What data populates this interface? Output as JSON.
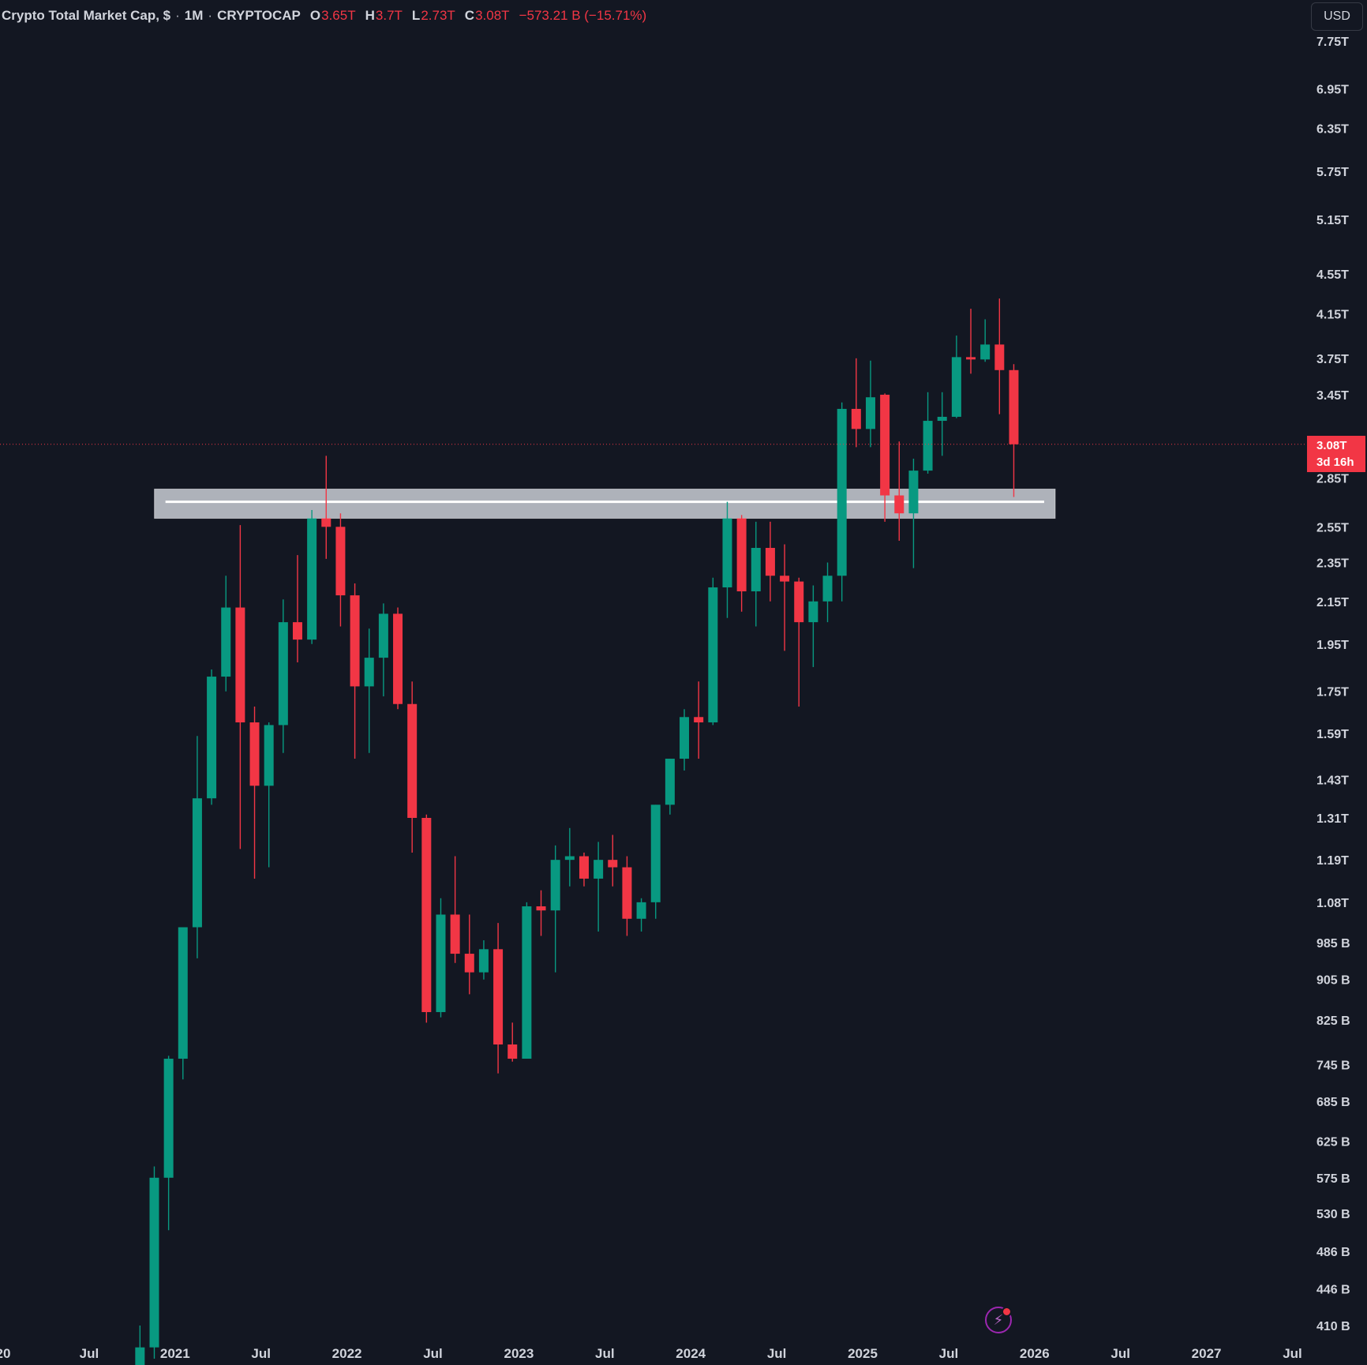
{
  "header": {
    "title": "Crypto Total Market Cap, $",
    "interval": "1M",
    "exchange": "CRYPTOCAP",
    "open_label": "O",
    "open_value": "3.65T",
    "high_label": "H",
    "high_value": "3.7T",
    "low_label": "L",
    "low_value": "2.73T",
    "close_label": "C",
    "close_value": "3.08T",
    "change": "−573.21 B (−15.71%)"
  },
  "currency_button": "USD",
  "last_price": {
    "value": "3.08T",
    "countdown": "3d 16h"
  },
  "bolt_icon": "lightning-bolt-icon",
  "colors": {
    "background": "#131722",
    "up": "#089981",
    "down": "#f23645",
    "zone": "#d1d4dc"
  },
  "chart_data": {
    "type": "candlestick",
    "title": "Crypto Total Market Cap",
    "interval": "1M",
    "y_scale": "log",
    "ylim": [
      400000000000,
      7900000000000
    ],
    "y_unit": "USD",
    "y_ticks": [
      {
        "label": "7.75T",
        "value": 7750000000000.0
      },
      {
        "label": "6.95T",
        "value": 6950000000000.0
      },
      {
        "label": "6.35T",
        "value": 6350000000000.0
      },
      {
        "label": "5.75T",
        "value": 5750000000000.0
      },
      {
        "label": "5.15T",
        "value": 5150000000000.0
      },
      {
        "label": "4.55T",
        "value": 4550000000000.0
      },
      {
        "label": "4.15T",
        "value": 4150000000000.0
      },
      {
        "label": "3.75T",
        "value": 3750000000000.0
      },
      {
        "label": "3.45T",
        "value": 3450000000000.0
      },
      {
        "label": "2.85T",
        "value": 2850000000000.0
      },
      {
        "label": "2.55T",
        "value": 2550000000000.0
      },
      {
        "label": "2.35T",
        "value": 2350000000000.0
      },
      {
        "label": "2.15T",
        "value": 2150000000000.0
      },
      {
        "label": "1.95T",
        "value": 1950000000000.0
      },
      {
        "label": "1.75T",
        "value": 1750000000000.0
      },
      {
        "label": "1.59T",
        "value": 1590000000000.0
      },
      {
        "label": "1.43T",
        "value": 1430000000000.0
      },
      {
        "label": "1.31T",
        "value": 1310000000000.0
      },
      {
        "label": "1.19T",
        "value": 1190000000000.0
      },
      {
        "label": "1.08T",
        "value": 1080000000000.0
      },
      {
        "label": "985 B",
        "value": 985000000000.0
      },
      {
        "label": "905 B",
        "value": 905000000000.0
      },
      {
        "label": "825 B",
        "value": 825000000000.0
      },
      {
        "label": "745 B",
        "value": 745000000000.0
      },
      {
        "label": "685 B",
        "value": 685000000000.0
      },
      {
        "label": "625 B",
        "value": 625000000000.0
      },
      {
        "label": "575 B",
        "value": 575000000000.0
      },
      {
        "label": "530 B",
        "value": 530000000000.0
      },
      {
        "label": "486 B",
        "value": 486000000000.0
      },
      {
        "label": "446 B",
        "value": 446000000000.0
      },
      {
        "label": "410 B",
        "value": 410000000000.0
      }
    ],
    "x_ticks": [
      {
        "label": "20",
        "date": "2020-01"
      },
      {
        "label": "Jul",
        "date": "2020-07"
      },
      {
        "label": "2021",
        "date": "2021-01"
      },
      {
        "label": "Jul",
        "date": "2021-07"
      },
      {
        "label": "2022",
        "date": "2022-01"
      },
      {
        "label": "Jul",
        "date": "2022-07"
      },
      {
        "label": "2023",
        "date": "2023-01"
      },
      {
        "label": "Jul",
        "date": "2023-07"
      },
      {
        "label": "2024",
        "date": "2024-01"
      },
      {
        "label": "Jul",
        "date": "2024-07"
      },
      {
        "label": "2025",
        "date": "2025-01"
      },
      {
        "label": "Jul",
        "date": "2025-07"
      },
      {
        "label": "2026",
        "date": "2026-01"
      },
      {
        "label": "Jul",
        "date": "2026-07"
      },
      {
        "label": "2027",
        "date": "2027-01"
      },
      {
        "label": "Jul",
        "date": "2027-07"
      }
    ],
    "candles": [
      {
        "date": "2020-10",
        "open": 350000000000.0,
        "high": 410000000000.0,
        "low": 340000000000.0,
        "close": 390000000000.0
      },
      {
        "date": "2020-11",
        "open": 390000000000.0,
        "high": 590000000000.0,
        "low": 380000000000.0,
        "close": 575000000000.0
      },
      {
        "date": "2020-12",
        "open": 575000000000.0,
        "high": 760000000000.0,
        "low": 510000000000.0,
        "close": 755000000000.0
      },
      {
        "date": "2021-01",
        "open": 755000000000.0,
        "high": 1000000000000.0,
        "low": 720000000000.0,
        "close": 1020000000000.0
      },
      {
        "date": "2021-02",
        "open": 1020000000000.0,
        "high": 1580000000000.0,
        "low": 950000000000.0,
        "close": 1370000000000.0
      },
      {
        "date": "2021-03",
        "open": 1370000000000.0,
        "high": 1840000000000.0,
        "low": 1350000000000.0,
        "close": 1810000000000.0
      },
      {
        "date": "2021-04",
        "open": 1810000000000.0,
        "high": 2280000000000.0,
        "low": 1750000000000.0,
        "close": 2120000000000.0
      },
      {
        "date": "2021-05",
        "open": 2120000000000.0,
        "high": 2560000000000.0,
        "low": 1220000000000.0,
        "close": 1630000000000.0
      },
      {
        "date": "2021-06",
        "open": 1630000000000.0,
        "high": 1690000000000.0,
        "low": 1140000000000.0,
        "close": 1410000000000.0
      },
      {
        "date": "2021-07",
        "open": 1410000000000.0,
        "high": 1630000000000.0,
        "low": 1170000000000.0,
        "close": 1620000000000.0
      },
      {
        "date": "2021-08",
        "open": 1620000000000.0,
        "high": 2160000000000.0,
        "low": 1520000000000.0,
        "close": 2050000000000.0
      },
      {
        "date": "2021-09",
        "open": 2050000000000.0,
        "high": 2390000000000.0,
        "low": 1870000000000.0,
        "close": 1970000000000.0
      },
      {
        "date": "2021-10",
        "open": 1970000000000.0,
        "high": 2650000000000.0,
        "low": 1950000000000.0,
        "close": 2600000000000.0
      },
      {
        "date": "2021-11",
        "open": 2600000000000.0,
        "high": 3000000000000.0,
        "low": 2370000000000.0,
        "close": 2550000000000.0
      },
      {
        "date": "2021-12",
        "open": 2550000000000.0,
        "high": 2630000000000.0,
        "low": 2030000000000.0,
        "close": 2180000000000.0
      },
      {
        "date": "2022-01",
        "open": 2180000000000.0,
        "high": 2240000000000.0,
        "low": 1500000000000.0,
        "close": 1770000000000.0
      },
      {
        "date": "2022-02",
        "open": 1770000000000.0,
        "high": 2020000000000.0,
        "low": 1520000000000.0,
        "close": 1890000000000.0
      },
      {
        "date": "2022-03",
        "open": 1890000000000.0,
        "high": 2140000000000.0,
        "low": 1730000000000.0,
        "close": 2090000000000.0
      },
      {
        "date": "2022-04",
        "open": 2090000000000.0,
        "high": 2120000000000.0,
        "low": 1680000000000.0,
        "close": 1700000000000.0
      },
      {
        "date": "2022-05",
        "open": 1700000000000.0,
        "high": 1790000000000.0,
        "low": 1210000000000.0,
        "close": 1310000000000.0
      },
      {
        "date": "2022-06",
        "open": 1310000000000.0,
        "high": 1320000000000.0,
        "low": 820000000000.0,
        "close": 840000000000.0
      },
      {
        "date": "2022-07",
        "open": 840000000000.0,
        "high": 1090000000000.0,
        "low": 830000000000.0,
        "close": 1050000000000.0
      },
      {
        "date": "2022-08",
        "open": 1050000000000.0,
        "high": 1200000000000.0,
        "low": 940000000000.0,
        "close": 960000000000.0
      },
      {
        "date": "2022-09",
        "open": 960000000000.0,
        "high": 1050000000000.0,
        "low": 875000000000.0,
        "close": 920000000000.0
      },
      {
        "date": "2022-10",
        "open": 920000000000.0,
        "high": 990000000000.0,
        "low": 905000000000.0,
        "close": 970000000000.0
      },
      {
        "date": "2022-11",
        "open": 970000000000.0,
        "high": 1030000000000.0,
        "low": 730000000000.0,
        "close": 780000000000.0
      },
      {
        "date": "2022-12",
        "open": 780000000000.0,
        "high": 820000000000.0,
        "low": 750000000000.0,
        "close": 755000000000.0
      },
      {
        "date": "2023-01",
        "open": 755000000000.0,
        "high": 1080000000000.0,
        "low": 755000000000.0,
        "close": 1070000000000.0
      },
      {
        "date": "2023-02",
        "open": 1070000000000.0,
        "high": 1110000000000.0,
        "low": 1000000000000.0,
        "close": 1060000000000.0
      },
      {
        "date": "2023-03",
        "open": 1060000000000.0,
        "high": 1230000000000.0,
        "low": 920000000000.0,
        "close": 1190000000000.0
      },
      {
        "date": "2023-04",
        "open": 1190000000000.0,
        "high": 1280000000000.0,
        "low": 1120000000000.0,
        "close": 1200000000000.0
      },
      {
        "date": "2023-05",
        "open": 1200000000000.0,
        "high": 1210000000000.0,
        "low": 1120000000000.0,
        "close": 1140000000000.0
      },
      {
        "date": "2023-06",
        "open": 1140000000000.0,
        "high": 1240000000000.0,
        "low": 1010000000000.0,
        "close": 1190000000000.0
      },
      {
        "date": "2023-07",
        "open": 1190000000000.0,
        "high": 1260000000000.0,
        "low": 1120000000000.0,
        "close": 1170000000000.0
      },
      {
        "date": "2023-08",
        "open": 1170000000000.0,
        "high": 1200000000000.0,
        "low": 1000000000000.0,
        "close": 1040000000000.0
      },
      {
        "date": "2023-09",
        "open": 1040000000000.0,
        "high": 1090000000000.0,
        "low": 1010000000000.0,
        "close": 1080000000000.0
      },
      {
        "date": "2023-10",
        "open": 1080000000000.0,
        "high": 1350000000000.0,
        "low": 1040000000000.0,
        "close": 1350000000000.0
      },
      {
        "date": "2023-11",
        "open": 1350000000000.0,
        "high": 1500000000000.0,
        "low": 1320000000000.0,
        "close": 1500000000000.0
      },
      {
        "date": "2023-12",
        "open": 1500000000000.0,
        "high": 1680000000000.0,
        "low": 1460000000000.0,
        "close": 1650000000000.0
      },
      {
        "date": "2024-01",
        "open": 1650000000000.0,
        "high": 1790000000000.0,
        "low": 1500000000000.0,
        "close": 1630000000000.0
      },
      {
        "date": "2024-02",
        "open": 1630000000000.0,
        "high": 2270000000000.0,
        "low": 1620000000000.0,
        "close": 2220000000000.0
      },
      {
        "date": "2024-03",
        "open": 2220000000000.0,
        "high": 2700000000000.0,
        "low": 2070000000000.0,
        "close": 2600000000000.0
      },
      {
        "date": "2024-04",
        "open": 2600000000000.0,
        "high": 2620000000000.0,
        "low": 2100000000000.0,
        "close": 2200000000000.0
      },
      {
        "date": "2024-05",
        "open": 2200000000000.0,
        "high": 2580000000000.0,
        "low": 2030000000000.0,
        "close": 2430000000000.0
      },
      {
        "date": "2024-06",
        "open": 2430000000000.0,
        "high": 2580000000000.0,
        "low": 2150000000000.0,
        "close": 2280000000000.0
      },
      {
        "date": "2024-07",
        "open": 2280000000000.0,
        "high": 2450000000000.0,
        "low": 1920000000000.0,
        "close": 2250000000000.0
      },
      {
        "date": "2024-08",
        "open": 2250000000000.0,
        "high": 2270000000000.0,
        "low": 1690000000000.0,
        "close": 2050000000000.0
      },
      {
        "date": "2024-09",
        "open": 2050000000000.0,
        "high": 2230000000000.0,
        "low": 1850000000000.0,
        "close": 2150000000000.0
      },
      {
        "date": "2024-10",
        "open": 2150000000000.0,
        "high": 2350000000000.0,
        "low": 2050000000000.0,
        "close": 2280000000000.0
      },
      {
        "date": "2024-11",
        "open": 2280000000000.0,
        "high": 3390000000000.0,
        "low": 2150000000000.0,
        "close": 3340000000000.0
      },
      {
        "date": "2024-12",
        "open": 3340000000000.0,
        "high": 3750000000000.0,
        "low": 3060000000000.0,
        "close": 3190000000000.0
      },
      {
        "date": "2025-01",
        "open": 3190000000000.0,
        "high": 3730000000000.0,
        "low": 3060000000000.0,
        "close": 3430000000000.0
      },
      {
        "date": "2025-02",
        "open": 3450000000000.0,
        "high": 3460000000000.0,
        "low": 2580000000000.0,
        "close": 2740000000000.0
      },
      {
        "date": "2025-03",
        "open": 2740000000000.0,
        "high": 3100000000000.0,
        "low": 2470000000000.0,
        "close": 2630000000000.0
      },
      {
        "date": "2025-04",
        "open": 2630000000000.0,
        "high": 2980000000000.0,
        "low": 2320000000000.0,
        "close": 2900000000000.0
      },
      {
        "date": "2025-05",
        "open": 2900000000000.0,
        "high": 3470000000000.0,
        "low": 2880000000000.0,
        "close": 3250000000000.0
      },
      {
        "date": "2025-06",
        "open": 3250000000000.0,
        "high": 3470000000000.0,
        "low": 3000000000000.0,
        "close": 3280000000000.0
      },
      {
        "date": "2025-07",
        "open": 3280000000000.0,
        "high": 3950000000000.0,
        "low": 3270000000000.0,
        "close": 3760000000000.0
      },
      {
        "date": "2025-08",
        "open": 3760000000000.0,
        "high": 4200000000000.0,
        "low": 3620000000000.0,
        "close": 3740000000000.0
      },
      {
        "date": "2025-09",
        "open": 3740000000000.0,
        "high": 4100000000000.0,
        "low": 3720000000000.0,
        "close": 3870000000000.0
      },
      {
        "date": "2025-10",
        "open": 3870000000000.0,
        "high": 4300000000000.0,
        "low": 3300000000000.0,
        "close": 3650000000000.0
      },
      {
        "date": "2025-11",
        "open": 3650000000000.0,
        "high": 3700000000000.0,
        "low": 2730000000000.0,
        "close": 3080000000000.0
      }
    ],
    "zone": {
      "low": 2600000000000.0,
      "high": 2780000000000.0,
      "line": 2700000000000.0,
      "start": "2020-12",
      "end": "2026-02"
    },
    "last_price_line": 3080000000000.0
  }
}
